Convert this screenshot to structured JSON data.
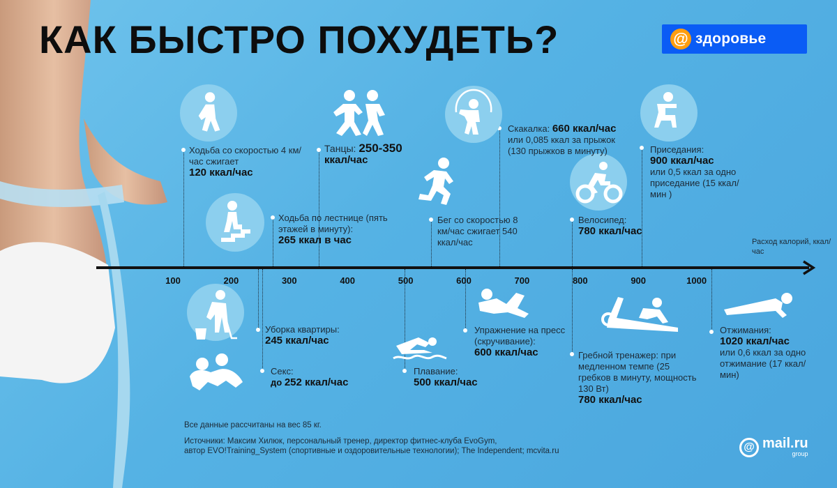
{
  "title": "КАК БЫСТРО ПОХУДЕТЬ?",
  "brand": {
    "at": "@",
    "text": "здоровье",
    "color": "#0a5cf5"
  },
  "axis": {
    "label": "Расход калорий, ккал/час",
    "ticks": [
      "100",
      "200",
      "300",
      "400",
      "500",
      "600",
      "700",
      "800",
      "900",
      "1000"
    ]
  },
  "activities": {
    "walk": {
      "text": "Ходьба со скоростью 4 км/час сжигает",
      "value": "120 ккал/час"
    },
    "dance": {
      "text": "Танцы: ",
      "value_a": "250-350",
      "value_b": "ккал/час"
    },
    "stairs": {
      "text": "Ходьба по лестнице (пять этажей в минуту):",
      "value": "265 ккал в час"
    },
    "run": {
      "text": "Бег со скоростью 8 км/час сжигает 540 ккал/час"
    },
    "rope": {
      "label": "Скакалка: ",
      "value": "660 ккал/час",
      "text": "или 0,085 ккал за прыжок (130 прыжков в минуту)"
    },
    "squat": {
      "label": "Приседания:",
      "value": "900 ккал/час",
      "text": "или 0,5 ккал за одно приседание (15 ккал/мин )"
    },
    "bike": {
      "label": "Велосипед:",
      "value": "780 ккал/час"
    },
    "clean": {
      "label": "Уборка квартиры:",
      "value": "245 ккал/час"
    },
    "sex": {
      "label": "Секс:",
      "value_pre": "до ",
      "value": "252 ккал/час"
    },
    "swim": {
      "label": "Плавание:",
      "value": "500 ккал/час"
    },
    "abs": {
      "label": "Упражнение на пресс (скручивание):",
      "value": "600 ккал/час"
    },
    "row": {
      "label": "Гребной тренажер: при медленном темпе (25 гребков в минуту, мощность 130 Вт)",
      "value": "780 ккал/час"
    },
    "push": {
      "label": "Отжимания:",
      "value": "1020 ккал/час",
      "text": "или 0,6 ккал за одно отжимание (17 ккал/мин)"
    }
  },
  "footer": {
    "note": "Все данные рассчитаны на вес 85 кг.",
    "sources_1": "Источники: Максим Хилюк, персональный тренер, директор фитнес-клуба EvoGym,",
    "sources_2": "автор EVO!Training_System (спортивные и оздоровительные технологии); The Independent; mcvita.ru"
  },
  "logo": {
    "at": "@",
    "name": "mail.ru",
    "sub": "group"
  }
}
